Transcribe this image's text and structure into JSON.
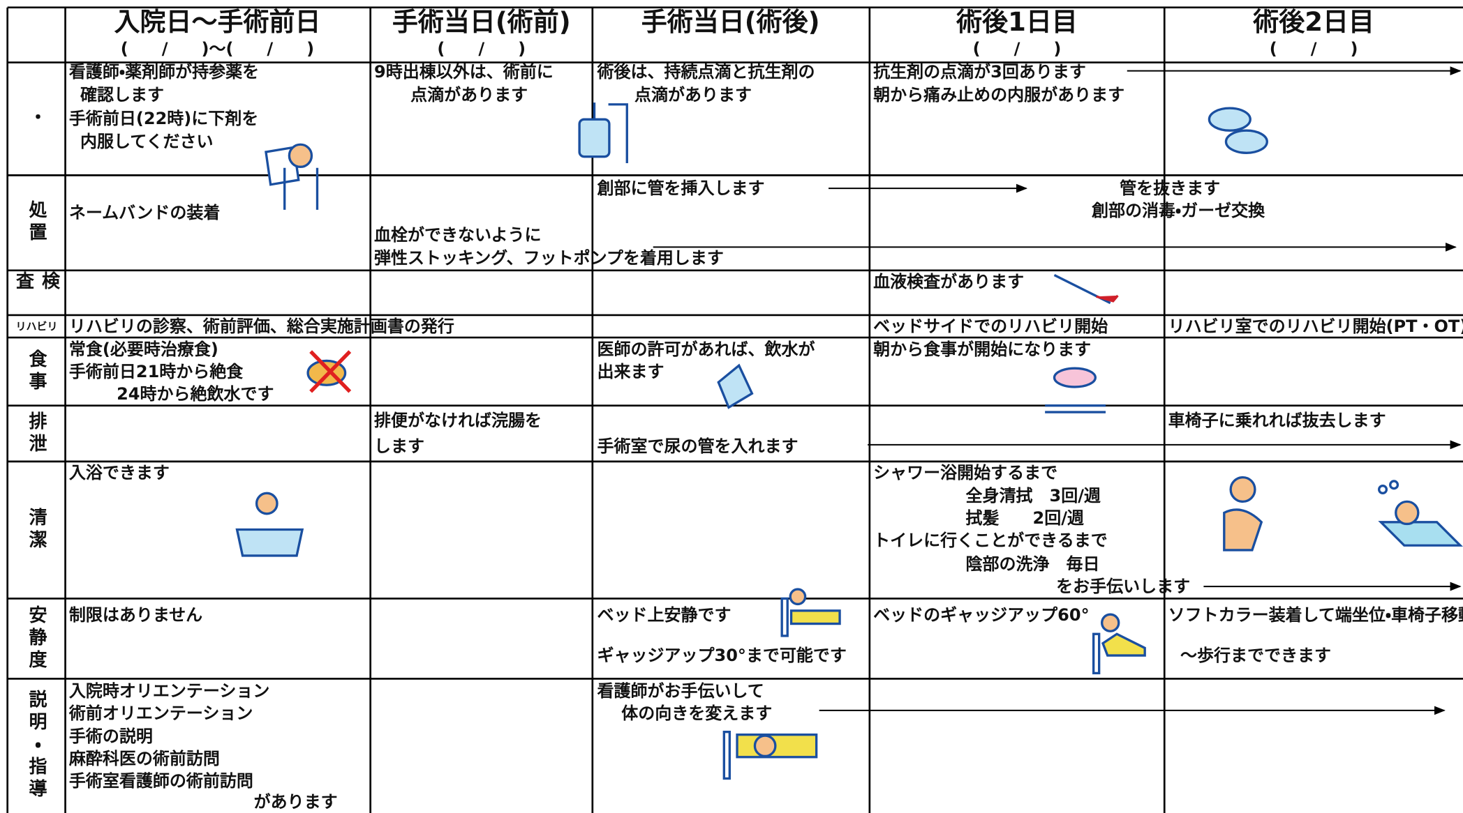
{
  "header": {
    "columns": [
      {
        "title": "入院日～手術前日",
        "date": "(　　/　　)～(　　/　　)"
      },
      {
        "title": "手術当日(術前)",
        "date": "(　　/　　)"
      },
      {
        "title": "手術当日(術後)"
      },
      {
        "title": "術後1日目",
        "date": "(　　/　　)"
      },
      {
        "title": "術後2日目",
        "date": "(　　/　　)"
      }
    ]
  },
  "rows": [
    {
      "label": "・",
      "texts": [
        "看護師・薬剤師が持参薬を",
        "確認します",
        "手術前日(22時)に下剤を",
        "内服してください",
        "9時出棟以外は、術前に",
        "点滴があります",
        "術後は、持続点滴と抗生剤の",
        "点滴があります",
        "抗生剤の点滴が3回あります",
        "朝から痛み止めの内服があります"
      ]
    },
    {
      "label": "処置",
      "texts": [
        "ネームバンドの装着",
        "血栓ができないように",
        "弾性ストッキング、フットポンプを着用します",
        "創部に管を挿入します",
        "管を抜きます",
        "創部の消毒・ガーゼ交換"
      ]
    },
    {
      "label": "検査",
      "texts": [
        "血液検査があります"
      ]
    },
    {
      "label": "リハビリ",
      "texts": [
        "リハビリの診察、術前評価、総合実施計画書の発行",
        "ベッドサイドでのリハビリ開始",
        "リハビリ室でのリハビリ開始(PT・OT)"
      ]
    },
    {
      "label": "食事",
      "texts": [
        "常食(必要時治療食)",
        "手術前日21時から絶食",
        "24時から絶飲水です",
        "医師の許可があれば、飲水が",
        "出来ます",
        "朝から食事が開始になります"
      ]
    },
    {
      "label": "排泄",
      "texts": [
        "排便がなければ浣腸を",
        "します",
        "手術室で尿の管を入れます",
        "車椅子に乗れれば抜去します"
      ]
    },
    {
      "label": "清潔",
      "texts": [
        "入浴できます",
        "シャワー浴開始するまで",
        "全身清拭　3回/週",
        "拭髪　　2回/週",
        "トイレに行くことができるまで",
        "陰部の洗浄　毎日",
        "をお手伝いします"
      ]
    },
    {
      "label": "安静度",
      "texts": [
        "制限はありません",
        "ベッド上安静です",
        "ギャッジアップ30°まで可能です",
        "ベッドのギャッジアップ60°",
        "ソフトカラー装着して端坐位・車椅子移動",
        "～歩行までできます"
      ]
    },
    {
      "label": "説明・指導",
      "texts": [
        "入院時オリエンテーション",
        "術前オリエンテーション",
        "手術の説明",
        "麻酔科医の術前訪問",
        "手術室看護師の術前訪問",
        "があります",
        "看護師がお手伝いして",
        "体の向きを変えます"
      ]
    }
  ]
}
